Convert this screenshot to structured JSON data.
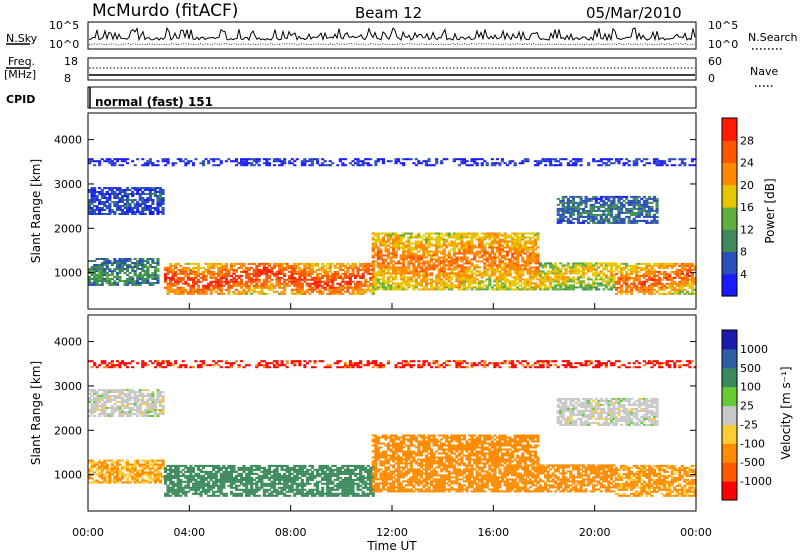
{
  "header": {
    "station": "McMurdo (fitACF)",
    "beam": "Beam 12",
    "date": "05/Mar/2010"
  },
  "strip_labels": {
    "nsky": "N.Sky",
    "nsearch": "N.Search",
    "freq": "Freq.",
    "freq_unit": "[MHz]",
    "nave": "Nave",
    "cpid": "CPID",
    "cpid_value": "normal (fast) 151",
    "nsky_ticks": [
      "10^5",
      "10^0"
    ],
    "nsearch_ticks": [
      "10^5",
      "10^0"
    ],
    "freq_ticks": [
      "18",
      "8"
    ],
    "nave_ticks": [
      "60",
      "0"
    ]
  },
  "colors": {
    "power": [
      "#1a1aff",
      "#2b4fb8",
      "#3f8a5a",
      "#5fae3c",
      "#e6c600",
      "#ff8a00",
      "#ff5500",
      "#ff1a00"
    ],
    "velocity": [
      "#ff0000",
      "#ff5a00",
      "#ff8c00",
      "#ffcc33",
      "#c8c8c8",
      "#66cc33",
      "#3b8a5a",
      "#2b5fa8",
      "#1a1aaa"
    ]
  },
  "chart_data": [
    {
      "type": "heatmap",
      "panel": "power",
      "xlabel": "",
      "ylabel": "Slant Range [km]",
      "yticks": [
        "1000",
        "2000",
        "3000",
        "4000"
      ],
      "ylim": [
        180,
        4600
      ],
      "xlim": [
        0,
        24
      ],
      "colorbar_label": "Power [dB]",
      "colorbar_ticks": [
        "4",
        "8",
        "12",
        "16",
        "20",
        "24",
        "28"
      ],
      "range_bands": [
        {
          "start": 0.0,
          "end": 2.8,
          "range_low": 700,
          "range_high": 1300,
          "value": 10
        },
        {
          "start": 0.0,
          "end": 3.0,
          "range_low": 2300,
          "range_high": 2900,
          "value": 6
        },
        {
          "start": 3.0,
          "end": 11.2,
          "range_low": 500,
          "range_high": 1200,
          "value": 26
        },
        {
          "start": 11.2,
          "end": 17.8,
          "range_low": 600,
          "range_high": 1900,
          "value": 22
        },
        {
          "start": 17.8,
          "end": 20.8,
          "range_low": 600,
          "range_high": 1200,
          "value": 18
        },
        {
          "start": 20.8,
          "end": 24.0,
          "range_low": 500,
          "range_high": 1200,
          "value": 24
        },
        {
          "start": 18.5,
          "end": 22.5,
          "range_low": 2100,
          "range_high": 2700,
          "value": 8
        },
        {
          "start": 0.0,
          "end": 24.0,
          "range_low": 3400,
          "range_high": 3550,
          "value": 4
        }
      ]
    },
    {
      "type": "heatmap",
      "panel": "velocity",
      "xlabel": "Time UT",
      "ylabel": "Slant Range [km]",
      "yticks": [
        "1000",
        "2000",
        "3000",
        "4000"
      ],
      "ylim": [
        180,
        4600
      ],
      "xlim": [
        0,
        24
      ],
      "xticks": [
        "00:00",
        "04:00",
        "08:00",
        "12:00",
        "16:00",
        "20:00",
        "00:00"
      ],
      "colorbar_label": "Velocity [m s⁻¹]",
      "colorbar_ticks": [
        "-1000",
        "-500",
        "-100",
        "-25",
        "25",
        "100",
        "500",
        "1000"
      ],
      "range_bands": [
        {
          "start": 0.0,
          "end": 3.0,
          "range_low": 800,
          "range_high": 1300,
          "value": -100
        },
        {
          "start": 0.0,
          "end": 3.0,
          "range_low": 2300,
          "range_high": 2900,
          "value": 0
        },
        {
          "start": 3.0,
          "end": 11.2,
          "range_low": 500,
          "range_high": 1200,
          "value": 300
        },
        {
          "start": 11.2,
          "end": 17.8,
          "range_low": 600,
          "range_high": 1900,
          "value": -150
        },
        {
          "start": 17.8,
          "end": 20.8,
          "range_low": 600,
          "range_high": 1200,
          "value": -150
        },
        {
          "start": 20.8,
          "end": 24.0,
          "range_low": 500,
          "range_high": 1200,
          "value": -120
        },
        {
          "start": 18.5,
          "end": 22.5,
          "range_low": 2100,
          "range_high": 2700,
          "value": 0
        },
        {
          "start": 0.0,
          "end": 24.0,
          "range_low": 3400,
          "range_high": 3550,
          "value": -600
        }
      ]
    }
  ]
}
